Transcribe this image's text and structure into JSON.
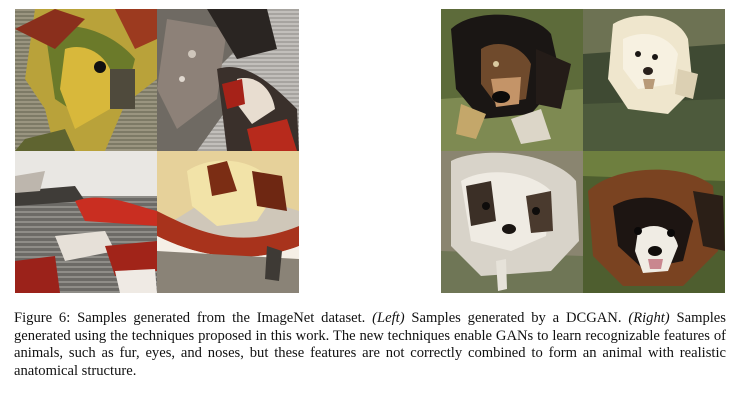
{
  "figure": {
    "left_panel": {
      "tiles": [
        {
          "depicts": "dcgan-sample-yellow-green-texture"
        },
        {
          "depicts": "dcgan-sample-grey-red-texture"
        },
        {
          "depicts": "dcgan-sample-grey-red-stripes"
        },
        {
          "depicts": "dcgan-sample-cream-red-band"
        }
      ]
    },
    "right_panel": {
      "tiles": [
        {
          "depicts": "gan-sample-black-tan-dog"
        },
        {
          "depicts": "gan-sample-white-fluffy-dog"
        },
        {
          "depicts": "gan-sample-grey-white-shaggy-dog"
        },
        {
          "depicts": "gan-sample-brown-tricolor-dog"
        }
      ]
    }
  },
  "caption": {
    "lead": "Figure 6: Samples generated from the ImageNet dataset.",
    "left_tag": "(Left)",
    "left_text": "Samples generated by a DCGAN.",
    "right_tag": "(Right)",
    "right_text": "Samples generated using the techniques proposed in this work. The new techniques enable GANs to learn recognizable features of animals, such as fur, eyes, and noses, but these features are not correctly combined to form an animal with realistic anatomical structure."
  }
}
